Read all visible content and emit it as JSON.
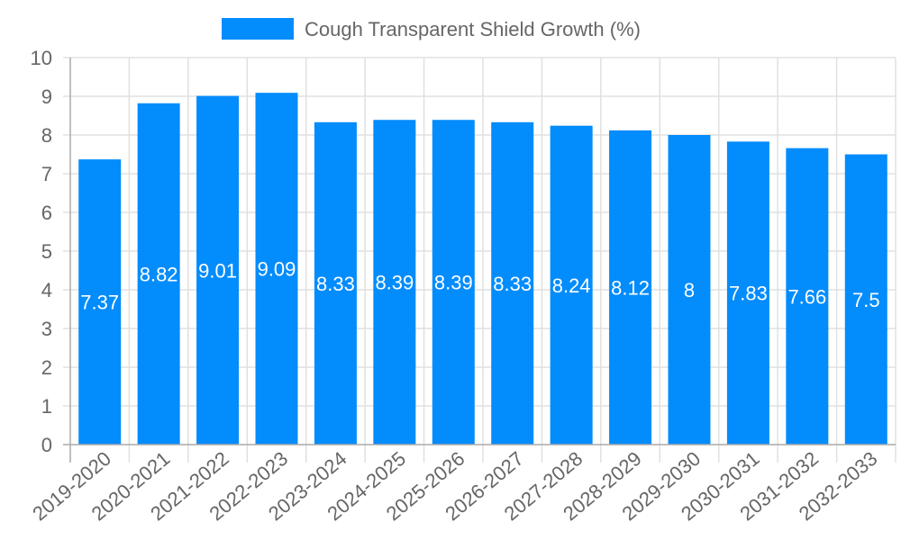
{
  "chart_data": {
    "type": "bar",
    "title": "",
    "legend": [
      {
        "label": "Cough Transparent Shield Growth (%)",
        "color": "#038cfc"
      }
    ],
    "legend_position": "top",
    "categories": [
      "2019-2020",
      "2020-2021",
      "2021-2022",
      "2022-2023",
      "2023-2024",
      "2024-2025",
      "2025-2026",
      "2026-2027",
      "2027-2028",
      "2028-2029",
      "2029-2030",
      "2030-2031",
      "2031-2032",
      "2032-2033"
    ],
    "series": [
      {
        "name": "Cough Transparent Shield Growth (%)",
        "values": [
          7.37,
          8.82,
          9.01,
          9.09,
          8.33,
          8.39,
          8.39,
          8.33,
          8.24,
          8.12,
          8,
          7.83,
          7.66,
          7.5
        ],
        "color": "#038cfc"
      }
    ],
    "value_labels": [
      "7.37",
      "8.82",
      "9.01",
      "9.09",
      "8.33",
      "8.39",
      "8.39",
      "8.33",
      "8.24",
      "8.12",
      "8",
      "7.83",
      "7.66",
      "7.5"
    ],
    "xlabel": "",
    "ylabel": "",
    "ylim": [
      0,
      10
    ],
    "yticks": [
      "0",
      "1",
      "2",
      "3",
      "4",
      "5",
      "6",
      "7",
      "8",
      "9",
      "10"
    ],
    "grid": true,
    "colors": {
      "bar": "#038cfc",
      "grid": "#e0e0e0",
      "axis": "#aaaaaa",
      "text": "#666666"
    }
  }
}
